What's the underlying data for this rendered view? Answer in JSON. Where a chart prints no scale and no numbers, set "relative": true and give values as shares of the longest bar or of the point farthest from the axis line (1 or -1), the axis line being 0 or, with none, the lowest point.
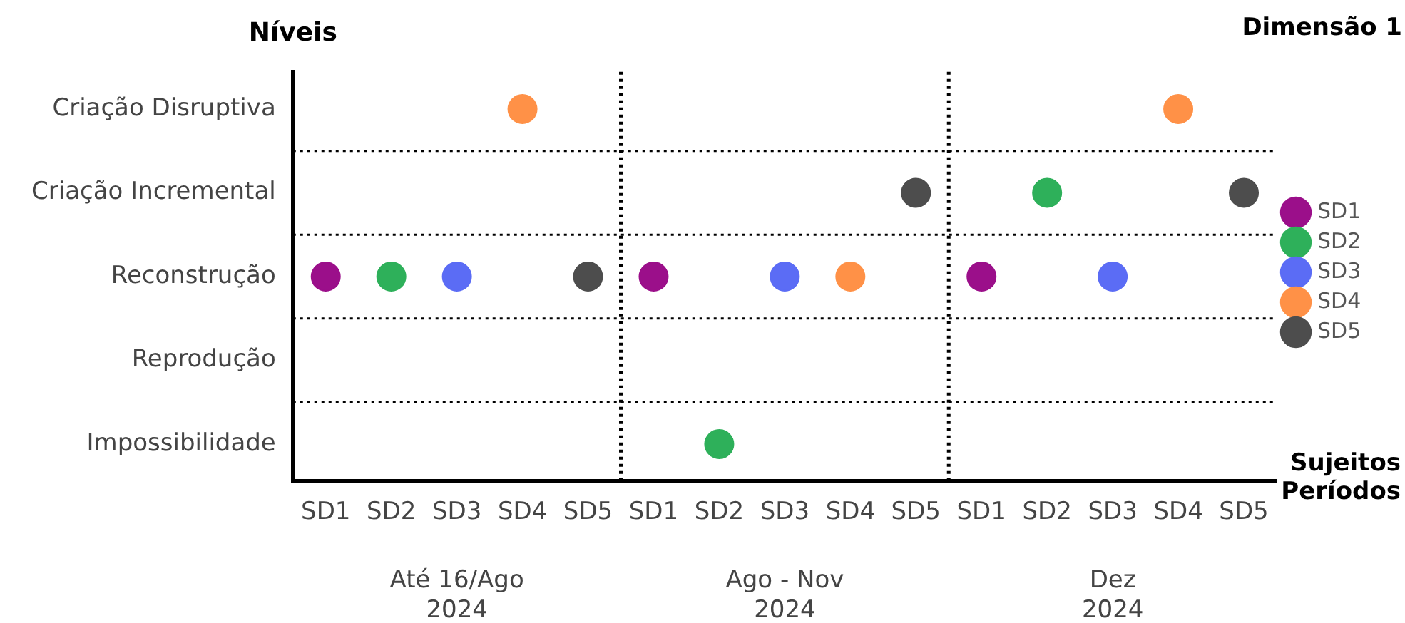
{
  "chart_data": {
    "type": "scatter",
    "relative": true,
    "title": "Dimensão 1",
    "ylabel": "Níveis",
    "xlabel": "Sujeitos\nPeríodos",
    "categories": [
      "SD1",
      "SD2",
      "SD3",
      "SD4",
      "SD5",
      "SD1",
      "SD2",
      "SD3",
      "SD4",
      "SD5",
      "SD1",
      "SD2",
      "SD3",
      "SD4",
      "SD5"
    ],
    "y_categories": [
      "Criação Disruptiva",
      "Criação Incremental",
      "Reconstrução",
      "Reprodução",
      "Impossibilidade"
    ],
    "series": [
      {
        "name": "SD1",
        "color": "#9b0f8a",
        "values": [
          0.55,
          null,
          null,
          null,
          null,
          0.55,
          null,
          null,
          null,
          null,
          0.55,
          null,
          null,
          null,
          null
        ]
      },
      {
        "name": "SD2",
        "color": "#2eb05a",
        "values": [
          null,
          0.55,
          null,
          null,
          null,
          null,
          0.1,
          null,
          null,
          null,
          null,
          0.775,
          null,
          null,
          null
        ]
      },
      {
        "name": "SD3",
        "color": "#5b6cf5",
        "values": [
          null,
          null,
          0.55,
          null,
          null,
          null,
          null,
          0.55,
          null,
          null,
          null,
          null,
          0.55,
          null,
          null
        ]
      },
      {
        "name": "SD4",
        "color": "#ff9147",
        "values": [
          null,
          null,
          null,
          1,
          null,
          null,
          null,
          null,
          0.55,
          null,
          null,
          null,
          null,
          1,
          null
        ]
      },
      {
        "name": "SD5",
        "color": "#4d4d4d",
        "values": [
          null,
          null,
          null,
          null,
          0.55,
          null,
          null,
          null,
          null,
          0.775,
          null,
          null,
          null,
          null,
          0.775
        ]
      }
    ],
    "annotations": [
      "Até 16/Ago\n2024",
      "Ago - Nov\n2024",
      "Dez\n2024"
    ],
    "legend": "right",
    "marker": "circle",
    "grid": "y",
    "line_style": "dotted"
  }
}
